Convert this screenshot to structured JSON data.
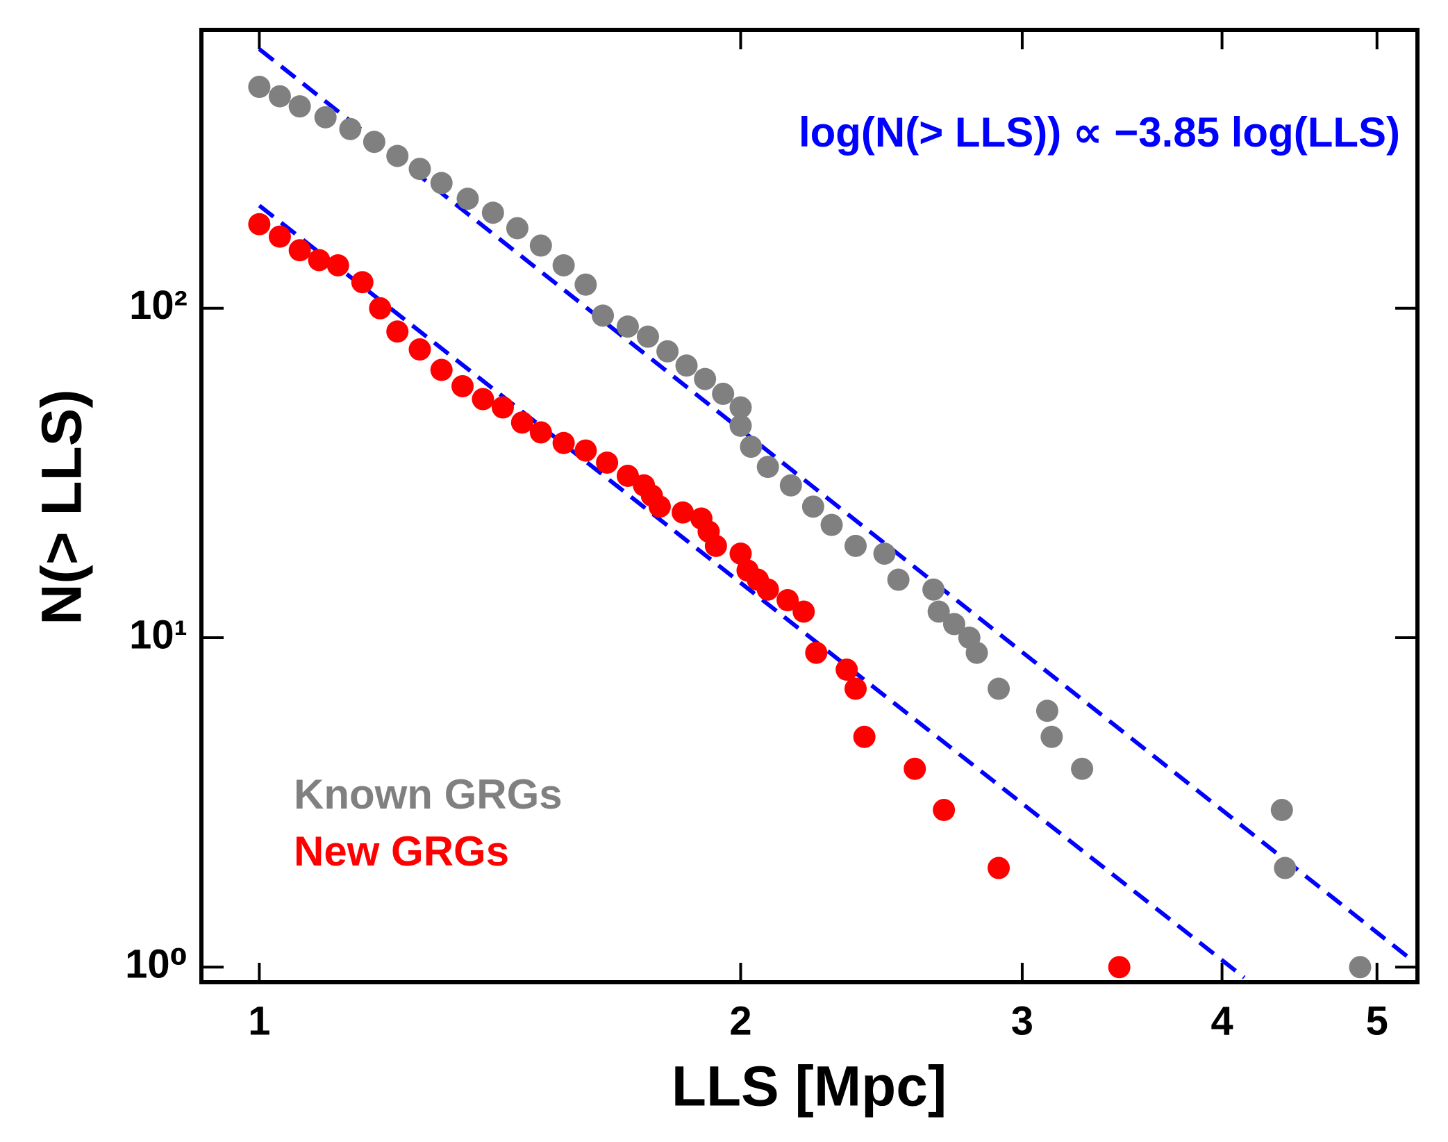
{
  "chart_data": {
    "type": "scatter",
    "xlabel": "LLS [Mpc]",
    "ylabel": "N(> LLS)",
    "annotation": "log(N(> LLS)) ∝ −3.85 log(LLS)",
    "xlog": true,
    "ylog": true,
    "xlim": [
      0.92,
      5.3
    ],
    "ylim": [
      0.9,
      700
    ],
    "xticks": [
      1,
      2,
      3,
      4,
      5
    ],
    "yticks": [
      {
        "value": 1,
        "label": "10⁰"
      },
      {
        "value": 10,
        "label": "10¹"
      },
      {
        "value": 100,
        "label": "10²"
      }
    ],
    "legend": "lower left",
    "series": [
      {
        "name": "Known GRGs",
        "color": "#808080",
        "x": [
          1.0,
          1.03,
          1.06,
          1.1,
          1.14,
          1.18,
          1.22,
          1.26,
          1.3,
          1.35,
          1.4,
          1.45,
          1.5,
          1.55,
          1.6,
          1.64,
          1.7,
          1.75,
          1.8,
          1.85,
          1.9,
          1.95,
          2.0,
          2.0,
          2.03,
          2.08,
          2.15,
          2.22,
          2.28,
          2.36,
          2.46,
          2.51,
          2.64,
          2.66,
          2.72,
          2.78,
          2.81,
          2.9,
          3.11,
          3.13,
          3.27,
          4.36,
          4.38,
          4.88
        ],
        "values": [
          470,
          440,
          410,
          380,
          350,
          320,
          290,
          265,
          240,
          215,
          195,
          175,
          155,
          135,
          118,
          95,
          88,
          82,
          74,
          67,
          61,
          55,
          50,
          44,
          38,
          33,
          29,
          25,
          22,
          19,
          18,
          15,
          14,
          12,
          11,
          10,
          9,
          7,
          6,
          5,
          4,
          3,
          2,
          1
        ]
      },
      {
        "name": "New GRGs",
        "color": "#ff0000",
        "x": [
          1.0,
          1.03,
          1.06,
          1.09,
          1.12,
          1.16,
          1.19,
          1.22,
          1.26,
          1.3,
          1.34,
          1.38,
          1.42,
          1.46,
          1.5,
          1.55,
          1.6,
          1.65,
          1.7,
          1.74,
          1.76,
          1.78,
          1.84,
          1.89,
          1.91,
          1.93,
          2.0,
          2.02,
          2.05,
          2.08,
          2.14,
          2.19,
          2.23,
          2.33,
          2.36,
          2.39,
          2.57,
          2.68,
          2.9,
          3.45
        ],
        "values": [
          180,
          165,
          150,
          140,
          135,
          120,
          100,
          85,
          75,
          65,
          58,
          53,
          50,
          45,
          42,
          39,
          37,
          34,
          31,
          29,
          27,
          25,
          24,
          23,
          21,
          19,
          18,
          16,
          15,
          14,
          13,
          12,
          9,
          8,
          7,
          5,
          4,
          3,
          2,
          1
        ]
      }
    ],
    "fits": [
      {
        "color": "#0000ff",
        "x": [
          1,
          5.22
        ],
        "values": [
          612,
          1.08
        ]
      },
      {
        "color": "#0000ff",
        "x": [
          1,
          4.13
        ],
        "values": [
          205,
          0.93
        ]
      }
    ]
  }
}
